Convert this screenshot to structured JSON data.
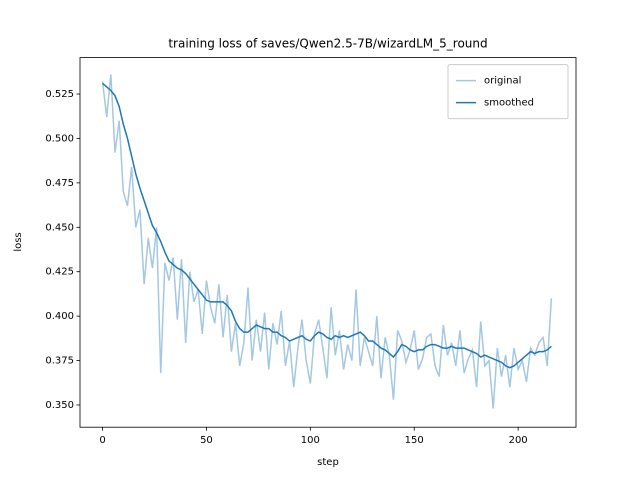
{
  "chart_data": {
    "type": "line",
    "title": "training loss of saves/Qwen2.5-7B/wizardLM_5_round",
    "xlabel": "step",
    "ylabel": "loss",
    "x": [
      0,
      2,
      4,
      6,
      8,
      10,
      12,
      14,
      16,
      18,
      20,
      22,
      24,
      26,
      28,
      30,
      32,
      34,
      36,
      38,
      40,
      42,
      44,
      46,
      48,
      50,
      52,
      54,
      56,
      58,
      60,
      62,
      64,
      66,
      68,
      70,
      72,
      74,
      76,
      78,
      80,
      82,
      84,
      86,
      88,
      90,
      92,
      94,
      96,
      98,
      100,
      102,
      104,
      106,
      108,
      110,
      112,
      114,
      116,
      118,
      120,
      122,
      124,
      126,
      128,
      130,
      132,
      134,
      136,
      138,
      140,
      142,
      144,
      146,
      148,
      150,
      152,
      154,
      156,
      158,
      160,
      162,
      164,
      166,
      168,
      170,
      172,
      174,
      176,
      178,
      180,
      182,
      184,
      186,
      188,
      190,
      192,
      194,
      196,
      198,
      200,
      202,
      204,
      206,
      208,
      210,
      212,
      214,
      216
    ],
    "series": [
      {
        "name": "original",
        "color": "#a4c8e1",
        "values": [
          0.532,
          0.512,
          0.536,
          0.492,
          0.51,
          0.47,
          0.462,
          0.484,
          0.45,
          0.46,
          0.418,
          0.444,
          0.427,
          0.45,
          0.368,
          0.43,
          0.42,
          0.433,
          0.398,
          0.432,
          0.385,
          0.425,
          0.408,
          0.415,
          0.39,
          0.42,
          0.405,
          0.396,
          0.418,
          0.388,
          0.412,
          0.38,
          0.396,
          0.372,
          0.385,
          0.416,
          0.375,
          0.398,
          0.38,
          0.402,
          0.37,
          0.396,
          0.384,
          0.403,
          0.372,
          0.386,
          0.36,
          0.382,
          0.398,
          0.375,
          0.362,
          0.39,
          0.398,
          0.382,
          0.365,
          0.405,
          0.378,
          0.392,
          0.37,
          0.384,
          0.375,
          0.415,
          0.372,
          0.388,
          0.38,
          0.372,
          0.4,
          0.365,
          0.388,
          0.378,
          0.353,
          0.392,
          0.386,
          0.374,
          0.381,
          0.392,
          0.37,
          0.376,
          0.388,
          0.39,
          0.372,
          0.366,
          0.395,
          0.378,
          0.385,
          0.372,
          0.392,
          0.368,
          0.376,
          0.381,
          0.36,
          0.397,
          0.372,
          0.375,
          0.348,
          0.382,
          0.366,
          0.378,
          0.36,
          0.382,
          0.37,
          0.375,
          0.363,
          0.382,
          0.378,
          0.385,
          0.388,
          0.372,
          0.41
        ]
      },
      {
        "name": "smoothed",
        "color": "#1f77b4",
        "values": [
          0.531,
          0.529,
          0.527,
          0.524,
          0.518,
          0.508,
          0.5,
          0.49,
          0.48,
          0.472,
          0.465,
          0.458,
          0.451,
          0.447,
          0.442,
          0.436,
          0.431,
          0.429,
          0.427,
          0.426,
          0.424,
          0.421,
          0.418,
          0.415,
          0.412,
          0.409,
          0.408,
          0.408,
          0.408,
          0.408,
          0.406,
          0.403,
          0.397,
          0.393,
          0.391,
          0.391,
          0.393,
          0.395,
          0.394,
          0.393,
          0.393,
          0.391,
          0.391,
          0.389,
          0.388,
          0.386,
          0.387,
          0.388,
          0.389,
          0.387,
          0.386,
          0.389,
          0.391,
          0.39,
          0.388,
          0.387,
          0.389,
          0.388,
          0.389,
          0.388,
          0.389,
          0.39,
          0.391,
          0.389,
          0.386,
          0.386,
          0.384,
          0.382,
          0.381,
          0.379,
          0.377,
          0.38,
          0.384,
          0.383,
          0.381,
          0.38,
          0.381,
          0.381,
          0.383,
          0.384,
          0.384,
          0.383,
          0.382,
          0.382,
          0.383,
          0.382,
          0.382,
          0.382,
          0.381,
          0.38,
          0.379,
          0.377,
          0.378,
          0.377,
          0.376,
          0.375,
          0.374,
          0.372,
          0.371,
          0.372,
          0.374,
          0.376,
          0.378,
          0.38,
          0.379,
          0.38,
          0.38,
          0.381,
          0.383
        ]
      }
    ],
    "xlim": [
      -10.85,
      227.85
    ],
    "ylim": [
      0.3375,
      0.5455
    ],
    "xticks": [
      0,
      50,
      100,
      150,
      200
    ],
    "yticks": [
      {
        "value": 0.35,
        "label": "0.350"
      },
      0.375,
      {
        "value": 0.4,
        "label": "0.400"
      },
      0.425,
      {
        "value": 0.45,
        "label": "0.450"
      },
      0.475,
      {
        "value": 0.5,
        "label": "0.500"
      },
      0.525
    ],
    "legend": "upper right"
  }
}
